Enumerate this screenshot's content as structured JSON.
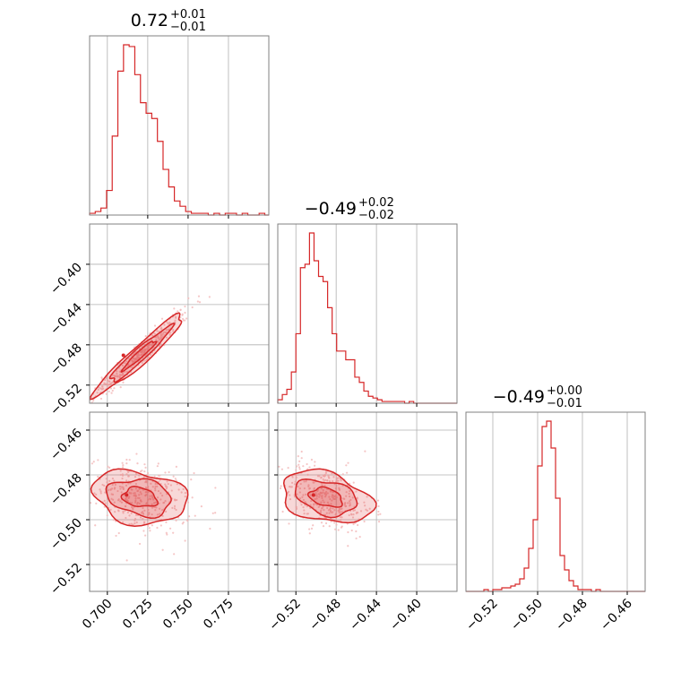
{
  "colors": {
    "accent": "#d62728",
    "grid": "#b0b0b0",
    "frame": "#808080",
    "scatter": "#f2b8b8",
    "text": "#000000"
  },
  "chart_data": {
    "type": "corner",
    "parameters": [
      {
        "title": {
          "main": "0.72",
          "sup": "+0.01",
          "sub": "−0.01"
        },
        "range": [
          0.689,
          0.8
        ],
        "ticks": [
          0.7,
          0.725,
          0.75,
          0.775
        ],
        "tick_labels": [
          "0.700",
          "0.725",
          "0.750",
          "0.775"
        ],
        "hist": {
          "bins": [
            0.689,
            0.6925,
            0.696,
            0.6995,
            0.703,
            0.7065,
            0.71,
            0.7135,
            0.717,
            0.7205,
            0.724,
            0.7275,
            0.731,
            0.7345,
            0.738,
            0.7415,
            0.745,
            0.7485,
            0.752,
            0.7555,
            0.759,
            0.7625,
            0.766,
            0.7695,
            0.773,
            0.7765,
            0.78,
            0.7835,
            0.787,
            0.7905,
            0.794,
            0.7975,
            0.8
          ],
          "counts": [
            1,
            2,
            4,
            14,
            45,
            82,
            97,
            96,
            80,
            64,
            58,
            55,
            42,
            26,
            16,
            8,
            5,
            2,
            1,
            1,
            1,
            0,
            1,
            0,
            1,
            1,
            0,
            1,
            0,
            0,
            1,
            0
          ]
        }
      },
      {
        "title": {
          "main": "−0.49",
          "sup": "+0.02",
          "sub": "−0.02"
        },
        "range": [
          -0.538,
          -0.36
        ],
        "ticks": [
          -0.52,
          -0.48,
          -0.44,
          -0.4
        ],
        "tick_labels": [
          "−0.52",
          "−0.48",
          "−0.44",
          "−0.40"
        ],
        "hist": {
          "bins": [
            -0.538,
            -0.5335,
            -0.529,
            -0.5245,
            -0.52,
            -0.5155,
            -0.511,
            -0.5065,
            -0.502,
            -0.4975,
            -0.493,
            -0.4885,
            -0.484,
            -0.4795,
            -0.475,
            -0.4705,
            -0.466,
            -0.4615,
            -0.457,
            -0.4525,
            -0.448,
            -0.4435,
            -0.439,
            -0.4345,
            -0.43,
            -0.4255,
            -0.421,
            -0.4165,
            -0.412,
            -0.4075,
            -0.403,
            -0.3985,
            -0.394,
            -0.3895,
            -0.385,
            -0.3805,
            -0.376,
            -0.3715,
            -0.367,
            -0.3625,
            -0.36
          ],
          "counts": [
            2,
            5,
            8,
            18,
            40,
            78,
            80,
            98,
            82,
            73,
            70,
            55,
            40,
            30,
            30,
            25,
            25,
            15,
            12,
            7,
            4,
            3,
            2,
            1,
            1,
            1,
            1,
            1,
            0,
            1,
            0,
            0,
            0,
            0,
            0,
            0,
            0,
            0,
            0,
            0
          ]
        }
      },
      {
        "title": {
          "main": "−0.49",
          "sup": "+0.00",
          "sub": "−0.01"
        },
        "range": [
          -0.532,
          -0.452
        ],
        "ticks": [
          -0.52,
          -0.5,
          -0.48,
          -0.46
        ],
        "tick_labels": [
          "−0.52",
          "−0.50",
          "−0.48",
          "−0.46"
        ],
        "hist": {
          "bins": [
            -0.532,
            -0.53,
            -0.528,
            -0.526,
            -0.524,
            -0.522,
            -0.52,
            -0.518,
            -0.516,
            -0.514,
            -0.512,
            -0.51,
            -0.508,
            -0.506,
            -0.504,
            -0.502,
            -0.5,
            -0.498,
            -0.496,
            -0.494,
            -0.492,
            -0.49,
            -0.488,
            -0.486,
            -0.484,
            -0.482,
            -0.48,
            -0.478,
            -0.476,
            -0.474,
            -0.472,
            -0.47,
            -0.468,
            -0.466,
            -0.464,
            -0.462,
            -0.46,
            -0.458,
            -0.456,
            -0.454,
            -0.452
          ],
          "counts": [
            0,
            0,
            0,
            0,
            1,
            0,
            1,
            1,
            2,
            2,
            3,
            4,
            7,
            13,
            24,
            40,
            70,
            92,
            95,
            80,
            52,
            20,
            12,
            6,
            3,
            1,
            1,
            1,
            0,
            1,
            0,
            0,
            0,
            0,
            0,
            0,
            0,
            0,
            0,
            0
          ]
        }
      }
    ],
    "pairs": [
      {
        "x": 0,
        "y": 1,
        "correlation": 0.96,
        "contour_levels": [
          "outer",
          "middle",
          "inner"
        ]
      },
      {
        "x": 0,
        "y": 2,
        "correlation": -0.25,
        "contour_levels": [
          "outer",
          "middle",
          "inner"
        ]
      },
      {
        "x": 1,
        "y": 2,
        "correlation": -0.35,
        "contour_levels": [
          "outer",
          "middle",
          "inner"
        ]
      }
    ],
    "grid": true,
    "tick_rotation_deg": 45
  }
}
